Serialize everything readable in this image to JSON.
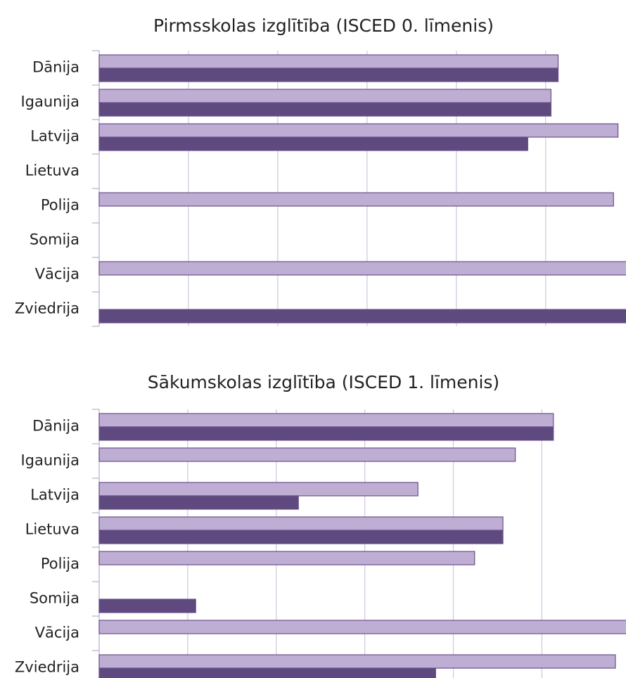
{
  "chart_data": [
    {
      "type": "bar",
      "orientation": "horizontal",
      "title": "Pirmsskolas izglītība (ISCED 0. līmenis)",
      "categories": [
        "Dānija",
        "Igaunija",
        "Latvija",
        "Lietuva",
        "Polija",
        "Somija",
        "Vācija",
        "Zviedrija"
      ],
      "series": [
        {
          "color": "#bfaed4",
          "values": [
            5.14,
            5.06,
            5.81,
            null,
            5.76,
            null,
            6.2,
            null
          ]
        },
        {
          "color": "#5e4a7e",
          "values": [
            5.14,
            5.06,
            4.8,
            null,
            null,
            null,
            null,
            6.2
          ]
        }
      ],
      "xlim": [
        0,
        5.9
      ],
      "xticks": [
        0,
        1,
        2,
        3,
        4,
        5
      ],
      "grid": true
    },
    {
      "type": "bar",
      "orientation": "horizontal",
      "title": "Sākumskolas izglītība (ISCED 1. līmenis)",
      "categories": [
        "Dānija",
        "Igaunija",
        "Latvija",
        "Lietuva",
        "Polija",
        "Somija",
        "Vācija",
        "Zviedrija"
      ],
      "series": [
        {
          "color": "#bfaed4",
          "values": [
            5.13,
            4.7,
            3.6,
            4.56,
            4.24,
            null,
            6.2,
            5.83
          ]
        },
        {
          "color": "#5e4a7e",
          "values": [
            5.13,
            null,
            2.25,
            4.56,
            null,
            1.09,
            null,
            3.8
          ]
        }
      ],
      "xlim": [
        0,
        5.95
      ],
      "xticks": [
        0,
        1,
        2,
        3,
        4,
        5
      ],
      "grid": true
    }
  ]
}
